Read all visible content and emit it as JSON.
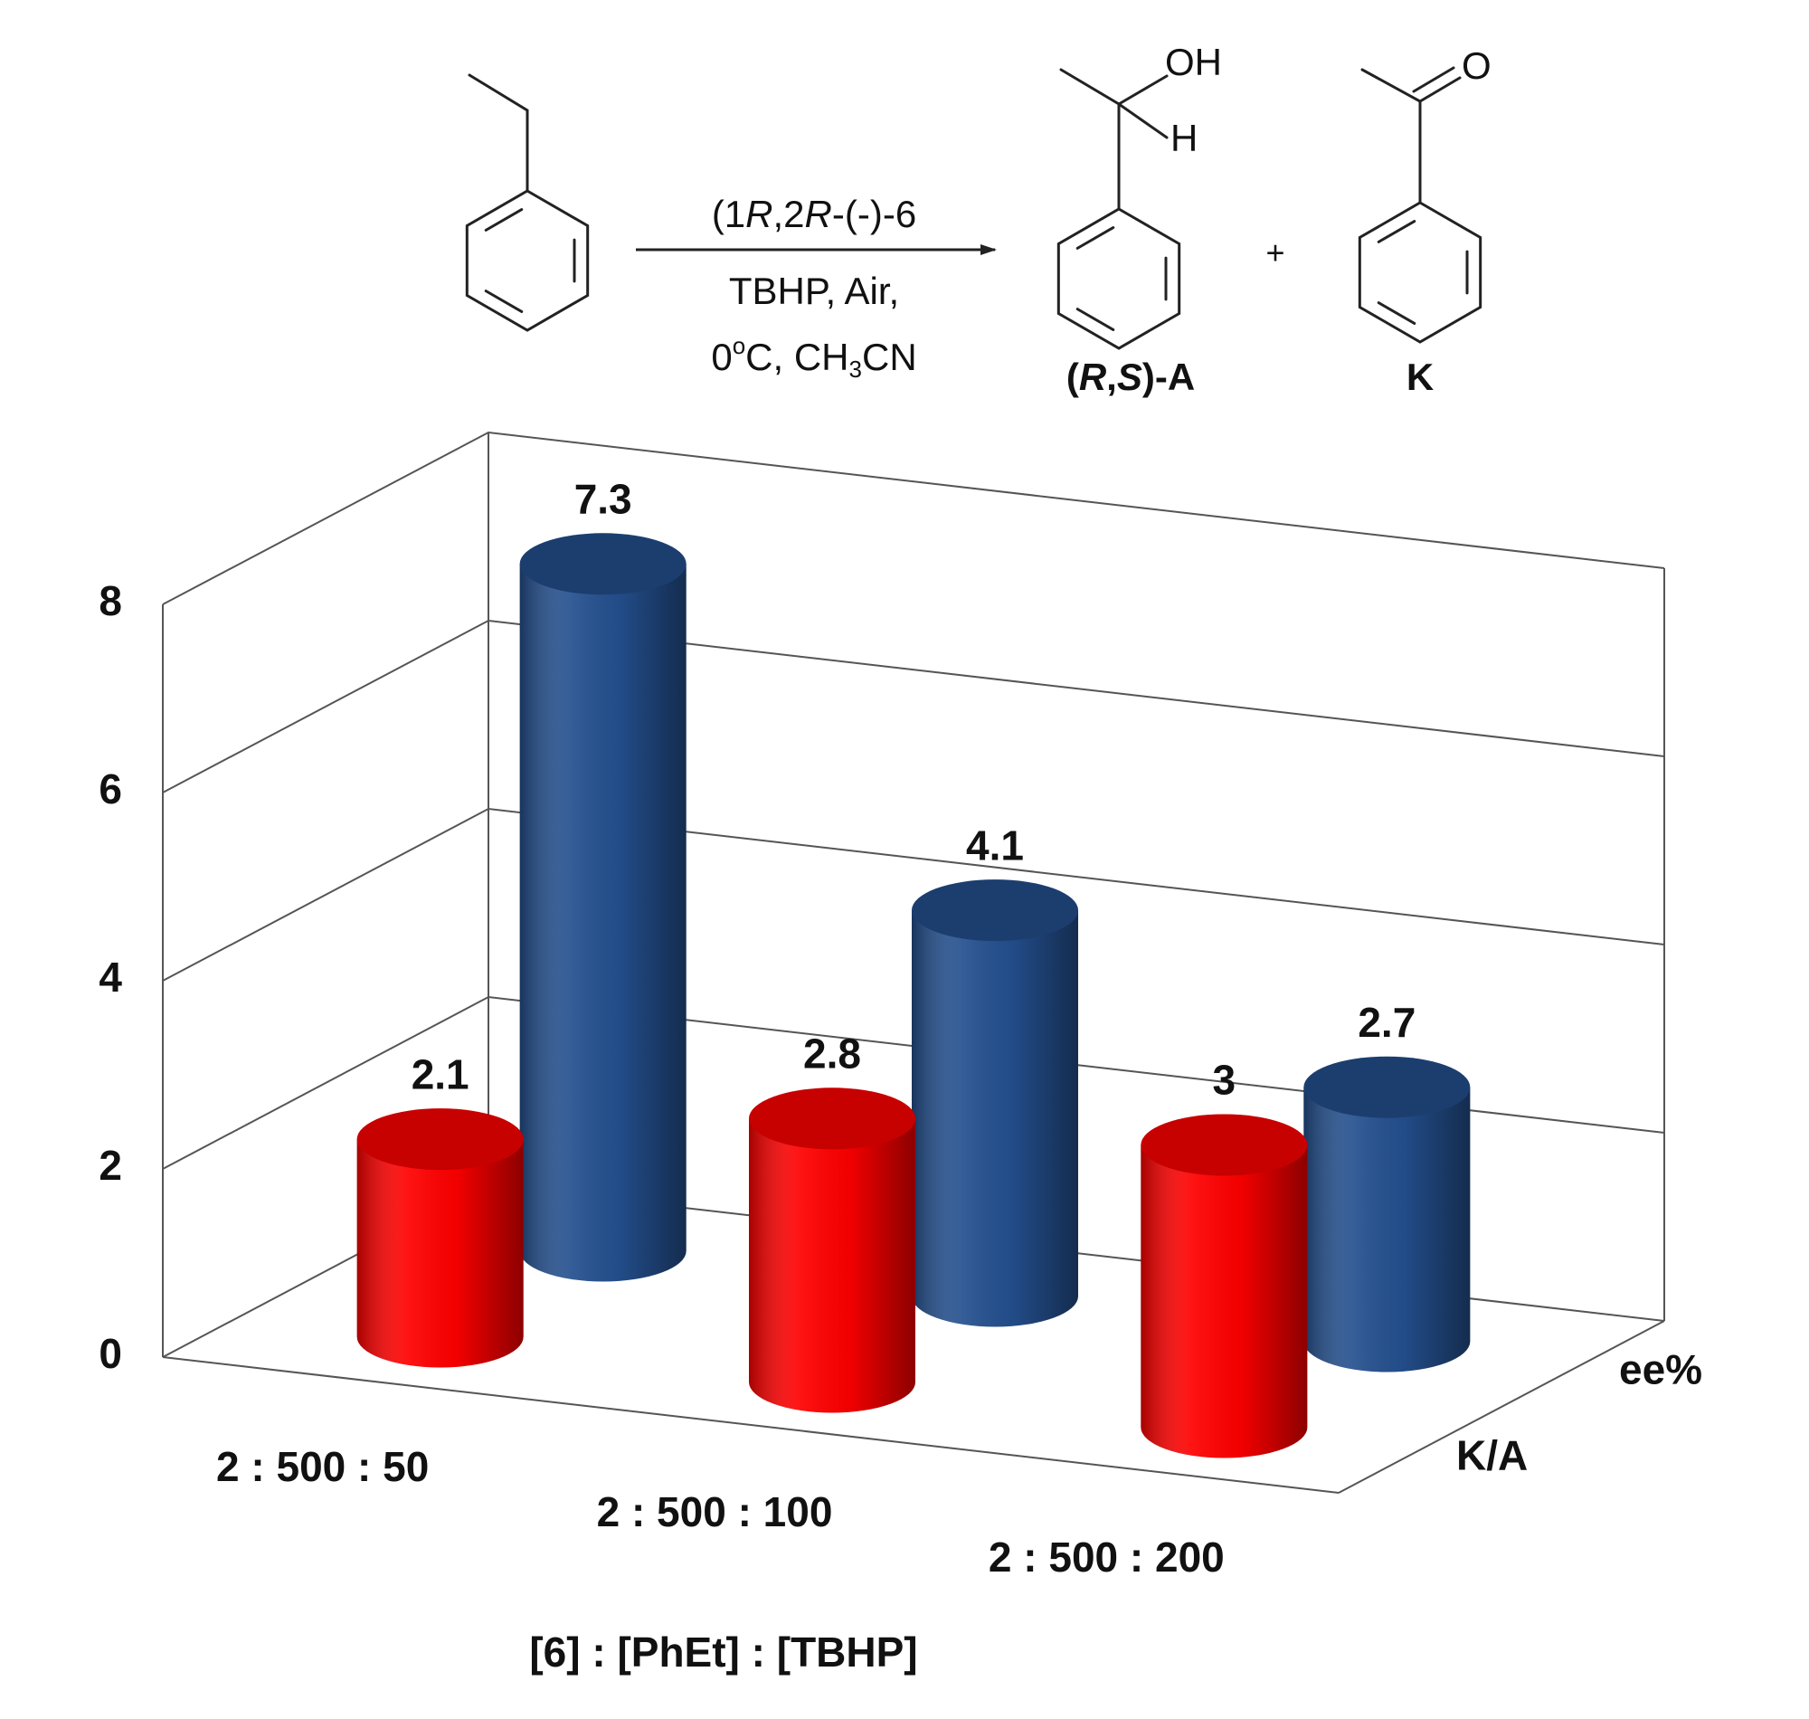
{
  "scheme": {
    "reagent": [
      "(1",
      "R",
      ",2",
      "R",
      "-(-)-6"
    ],
    "conditions_1": "TBHP, Air,",
    "conditions_2": [
      "0",
      "o",
      "C, CH",
      "3",
      "CN"
    ],
    "product_a_oh": "OH",
    "product_a_h": "H",
    "product_a_label": [
      "(",
      "R",
      ",",
      "S",
      ")-A"
    ],
    "plus": "+",
    "product_k_o": "O",
    "product_k_label": "K"
  },
  "chart_data": {
    "type": "bar",
    "style": "3d-cylinder",
    "x_label": "[6] : [PhEt] : [TBHP]",
    "categories": [
      "2 : 500 : 50",
      "2 : 500 : 100",
      "2 : 500 : 200"
    ],
    "series": [
      {
        "name": "K/A",
        "color": "#ff0000",
        "values": [
          2.1,
          2.8,
          3
        ]
      },
      {
        "name": "ee%",
        "color": "#24508f",
        "values": [
          7.3,
          4.1,
          2.7
        ]
      }
    ],
    "ylim": [
      0,
      8
    ],
    "yticks": [
      0,
      2,
      4,
      6,
      8
    ],
    "grid": true
  }
}
